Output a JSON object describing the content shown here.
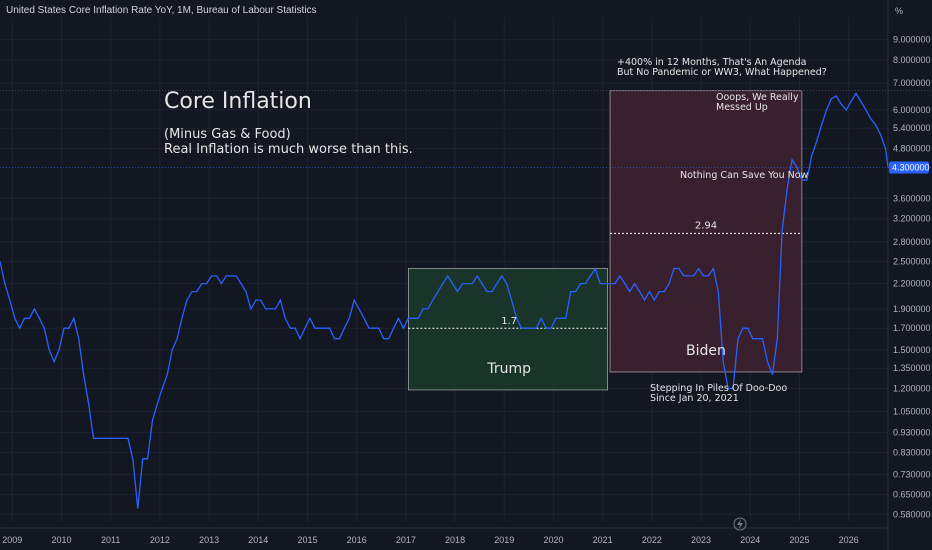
{
  "header": {
    "title": "United States Core Inflation Rate YoY, 1M, Bureau of Labour Statistics",
    "unit": "%"
  },
  "colors": {
    "background": "#131722",
    "line": "#2962ff",
    "trump_fill": "#1b3a2a",
    "biden_fill": "#3e2130",
    "price_label": "#2962ff"
  },
  "chart_data": {
    "type": "line",
    "scale": "log",
    "xlim": [
      2008.75,
      2026.8
    ],
    "ylim": [
      0.555,
      10.2
    ],
    "y_ticks": [
      "9.000000",
      "8.000000",
      "7.000000",
      "6.000000",
      "5.400000",
      "4.800000",
      "3.600000",
      "3.200000",
      "2.800000",
      "2.500000",
      "2.200000",
      "1.900000",
      "1.700000",
      "1.500000",
      "1.350000",
      "1.200000",
      "1.050000",
      "0.930000",
      "0.830000",
      "0.730000",
      "0.650000",
      "0.580000"
    ],
    "x_ticks": [
      "2009",
      "2010",
      "2011",
      "2012",
      "2013",
      "2014",
      "2015",
      "2016",
      "2017",
      "2018",
      "2019",
      "2020",
      "2021",
      "2022",
      "2023",
      "2024",
      "2025",
      "2026"
    ],
    "last_value_label": "4.300000",
    "series": [
      {
        "values": [
          [
            2008.75,
            2.5
          ],
          [
            2008.85,
            2.2
          ],
          [
            2008.95,
            2.0
          ],
          [
            2009.05,
            1.8
          ],
          [
            2009.15,
            1.7
          ],
          [
            2009.25,
            1.8
          ],
          [
            2009.35,
            1.8
          ],
          [
            2009.45,
            1.9
          ],
          [
            2009.55,
            1.8
          ],
          [
            2009.65,
            1.7
          ],
          [
            2009.75,
            1.5
          ],
          [
            2009.85,
            1.4
          ],
          [
            2009.95,
            1.5
          ],
          [
            2010.05,
            1.7
          ],
          [
            2010.15,
            1.7
          ],
          [
            2010.25,
            1.8
          ],
          [
            2010.35,
            1.6
          ],
          [
            2010.45,
            1.3
          ],
          [
            2010.55,
            1.1
          ],
          [
            2010.65,
            0.9
          ],
          [
            2010.75,
            0.9
          ],
          [
            2010.85,
            0.9
          ],
          [
            2010.95,
            0.9
          ],
          [
            2011.05,
            0.9
          ],
          [
            2011.15,
            0.9
          ],
          [
            2011.25,
            0.9
          ],
          [
            2011.35,
            0.9
          ],
          [
            2011.45,
            0.8
          ],
          [
            2011.55,
            0.6
          ],
          [
            2011.65,
            0.8
          ],
          [
            2011.75,
            0.8
          ],
          [
            2011.85,
            1.0
          ],
          [
            2011.95,
            1.1
          ],
          [
            2012.05,
            1.2
          ],
          [
            2012.15,
            1.3
          ],
          [
            2012.25,
            1.5
          ],
          [
            2012.35,
            1.6
          ],
          [
            2012.45,
            1.8
          ],
          [
            2012.55,
            2.0
          ],
          [
            2012.65,
            2.1
          ],
          [
            2012.75,
            2.1
          ],
          [
            2012.85,
            2.2
          ],
          [
            2012.95,
            2.2
          ],
          [
            2013.05,
            2.3
          ],
          [
            2013.15,
            2.3
          ],
          [
            2013.25,
            2.2
          ],
          [
            2013.35,
            2.3
          ],
          [
            2013.45,
            2.3
          ],
          [
            2013.55,
            2.3
          ],
          [
            2013.65,
            2.2
          ],
          [
            2013.75,
            2.1
          ],
          [
            2013.85,
            1.9
          ],
          [
            2013.95,
            2.0
          ],
          [
            2014.05,
            2.0
          ],
          [
            2014.15,
            1.9
          ],
          [
            2014.25,
            1.9
          ],
          [
            2014.35,
            1.9
          ],
          [
            2014.45,
            2.0
          ],
          [
            2014.55,
            1.8
          ],
          [
            2014.65,
            1.7
          ],
          [
            2014.75,
            1.7
          ],
          [
            2014.85,
            1.6
          ],
          [
            2014.95,
            1.7
          ],
          [
            2015.05,
            1.8
          ],
          [
            2015.15,
            1.7
          ],
          [
            2015.25,
            1.7
          ],
          [
            2015.35,
            1.7
          ],
          [
            2015.45,
            1.7
          ],
          [
            2015.55,
            1.6
          ],
          [
            2015.65,
            1.6
          ],
          [
            2015.75,
            1.7
          ],
          [
            2015.85,
            1.8
          ],
          [
            2015.95,
            2.0
          ],
          [
            2016.05,
            1.9
          ],
          [
            2016.15,
            1.8
          ],
          [
            2016.25,
            1.7
          ],
          [
            2016.35,
            1.7
          ],
          [
            2016.45,
            1.7
          ],
          [
            2016.55,
            1.6
          ],
          [
            2016.65,
            1.6
          ],
          [
            2016.75,
            1.7
          ],
          [
            2016.85,
            1.8
          ],
          [
            2016.95,
            1.7
          ],
          [
            2017.05,
            1.8
          ],
          [
            2017.15,
            1.8
          ],
          [
            2017.25,
            1.8
          ],
          [
            2017.35,
            1.9
          ],
          [
            2017.45,
            1.9
          ],
          [
            2017.55,
            2.0
          ],
          [
            2017.65,
            2.1
          ],
          [
            2017.75,
            2.2
          ],
          [
            2017.85,
            2.3
          ],
          [
            2017.95,
            2.2
          ],
          [
            2018.05,
            2.1
          ],
          [
            2018.15,
            2.2
          ],
          [
            2018.25,
            2.2
          ],
          [
            2018.35,
            2.2
          ],
          [
            2018.45,
            2.3
          ],
          [
            2018.55,
            2.2
          ],
          [
            2018.65,
            2.1
          ],
          [
            2018.75,
            2.1
          ],
          [
            2018.85,
            2.2
          ],
          [
            2018.95,
            2.3
          ],
          [
            2019.05,
            2.2
          ],
          [
            2019.15,
            2.0
          ],
          [
            2019.25,
            1.8
          ],
          [
            2019.35,
            1.7
          ],
          [
            2019.45,
            1.7
          ],
          [
            2019.55,
            1.7
          ],
          [
            2019.65,
            1.7
          ],
          [
            2019.75,
            1.8
          ],
          [
            2019.85,
            1.7
          ],
          [
            2019.95,
            1.7
          ],
          [
            2020.05,
            1.8
          ],
          [
            2020.15,
            1.8
          ],
          [
            2020.25,
            1.8
          ],
          [
            2020.35,
            2.1
          ],
          [
            2020.45,
            2.1
          ],
          [
            2020.55,
            2.2
          ],
          [
            2020.65,
            2.2
          ],
          [
            2020.75,
            2.3
          ],
          [
            2020.85,
            2.4
          ],
          [
            2020.95,
            2.2
          ],
          [
            2021.05,
            2.2
          ],
          [
            2021.15,
            2.2
          ],
          [
            2021.25,
            2.2
          ],
          [
            2021.35,
            2.3
          ],
          [
            2021.45,
            2.2
          ],
          [
            2021.55,
            2.1
          ],
          [
            2021.65,
            2.2
          ],
          [
            2021.75,
            2.1
          ],
          [
            2021.85,
            2.0
          ],
          [
            2021.95,
            2.1
          ],
          [
            2022.05,
            2.0
          ],
          [
            2022.15,
            2.1
          ],
          [
            2022.25,
            2.1
          ],
          [
            2022.35,
            2.2
          ],
          [
            2022.45,
            2.4
          ],
          [
            2022.55,
            2.4
          ],
          [
            2022.65,
            2.3
          ],
          [
            2022.75,
            2.3
          ],
          [
            2022.85,
            2.3
          ],
          [
            2022.95,
            2.4
          ],
          [
            2023.05,
            2.3
          ],
          [
            2023.15,
            2.3
          ],
          [
            2023.25,
            2.4
          ],
          [
            2023.35,
            2.1
          ],
          [
            2023.45,
            1.4
          ],
          [
            2023.55,
            1.2
          ],
          [
            2023.65,
            1.2
          ],
          [
            2023.75,
            1.6
          ],
          [
            2023.85,
            1.7
          ],
          [
            2023.95,
            1.7
          ],
          [
            2024.05,
            1.6
          ],
          [
            2024.15,
            1.6
          ],
          [
            2024.25,
            1.6
          ],
          [
            2024.35,
            1.4
          ],
          [
            2024.45,
            1.3
          ],
          [
            2024.55,
            1.6
          ],
          [
            2024.65,
            3.0
          ],
          [
            2024.75,
            3.8
          ],
          [
            2024.85,
            4.5
          ],
          [
            2024.95,
            4.3
          ],
          [
            2025.05,
            4.0
          ],
          [
            2025.15,
            4.0
          ],
          [
            2025.25,
            4.6
          ],
          [
            2025.35,
            5.0
          ],
          [
            2025.45,
            5.5
          ],
          [
            2025.55,
            6.0
          ],
          [
            2025.65,
            6.4
          ],
          [
            2025.75,
            6.5
          ],
          [
            2025.85,
            6.2
          ],
          [
            2025.95,
            6.0
          ],
          [
            2026.05,
            6.3
          ],
          [
            2026.15,
            6.6
          ],
          [
            2026.25,
            6.3
          ],
          [
            2026.35,
            6.0
          ],
          [
            2026.45,
            5.7
          ],
          [
            2026.55,
            5.5
          ],
          [
            2026.65,
            5.2
          ],
          [
            2026.75,
            4.8
          ],
          [
            2026.8,
            4.3
          ]
        ]
      }
    ],
    "annotations": {
      "title": "Core Inflation",
      "subtitle_1": "(Minus Gas & Food)",
      "subtitle_2": "Real Inflation is much worse than this.",
      "trump_label": "Trump",
      "trump_avg": "1.7",
      "biden_label": "Biden",
      "biden_avg": "2.94",
      "top_note_1": "+400% in 12 Months, That's An Agenda",
      "top_note_2": "But No Pandemic or WW3, What Happened?",
      "oops_1": "Ooops, We Really",
      "oops_2": "Messed Up",
      "nothing": "Nothing Can Save You Now",
      "stepping_1": "Stepping In Piles Of Doo-Doo",
      "stepping_2": "Since Jan 20, 2021"
    }
  }
}
